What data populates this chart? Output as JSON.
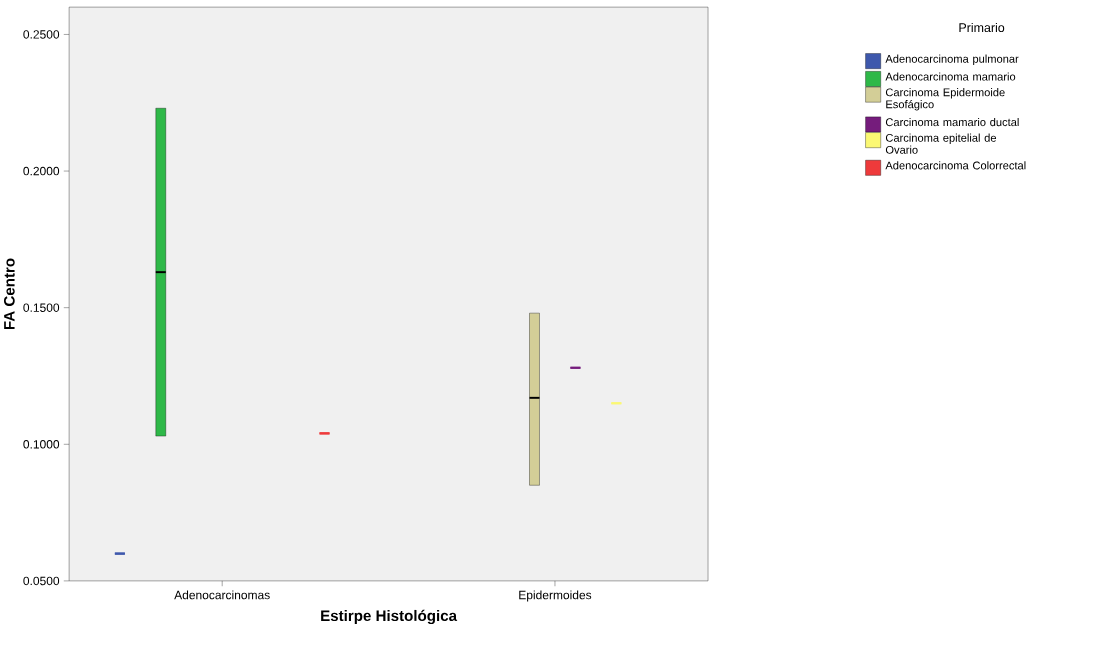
{
  "chart_data": {
    "type": "box",
    "xlabel": "Estirpe Histológica",
    "ylabel": "FA Centro",
    "legend_title": "Primario",
    "legend": "right",
    "categories": [
      "Adenocarcinomas",
      "Epidermoides"
    ],
    "ylim": [
      0.05,
      0.26
    ],
    "yticks": [
      {
        "value": 0.05,
        "label": "0.0500"
      },
      {
        "value": 0.1,
        "label": "0.1000"
      },
      {
        "value": 0.15,
        "label": "0.1500"
      },
      {
        "value": 0.2,
        "label": "0.2000"
      },
      {
        "value": 0.25,
        "label": "0.2500"
      }
    ],
    "series": [
      {
        "name": "Adenocarcinoma pulmonar",
        "color": "#3e58ac",
        "boxes": [
          {
            "low": 0.06,
            "q1": 0.06,
            "median": 0.06,
            "q3": 0.06,
            "high": 0.06
          },
          null
        ]
      },
      {
        "name": "Adenocarcinoma mamario",
        "color": "#2eb848",
        "boxes": [
          {
            "low": 0.103,
            "q1": 0.103,
            "median": 0.163,
            "q3": 0.223,
            "high": 0.223
          },
          null
        ]
      },
      {
        "name": "Carcinoma Epidermoide Esofágico",
        "color": "#d3ce97",
        "boxes": [
          null,
          {
            "low": 0.085,
            "q1": 0.085,
            "median": 0.117,
            "q3": 0.148,
            "high": 0.148
          }
        ]
      },
      {
        "name": "Carcinoma mamario ductal",
        "color": "#751c7c",
        "boxes": [
          null,
          {
            "low": 0.128,
            "q1": 0.128,
            "median": 0.128,
            "q3": 0.128,
            "high": 0.128
          }
        ]
      },
      {
        "name": "Carcinoma epitelial de Ovario",
        "color": "#fbf873",
        "boxes": [
          null,
          {
            "low": 0.115,
            "q1": 0.115,
            "median": 0.115,
            "q3": 0.115,
            "high": 0.115
          }
        ]
      },
      {
        "name": "Adenocarcinoma Colorrectal",
        "color": "#ee3a3b",
        "boxes": [
          {
            "low": 0.104,
            "q1": 0.104,
            "median": 0.104,
            "q3": 0.104,
            "high": 0.104
          },
          null
        ]
      }
    ]
  }
}
